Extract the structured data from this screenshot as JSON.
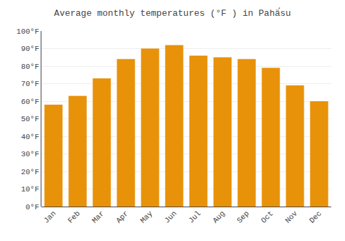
{
  "chart_data": {
    "type": "bar",
    "title": "Average monthly temperatures (°F ) in Pahä́su",
    "categories": [
      "Jan",
      "Feb",
      "Mar",
      "Apr",
      "May",
      "Jun",
      "Jul",
      "Aug",
      "Sep",
      "Oct",
      "Nov",
      "Dec"
    ],
    "values": [
      58,
      63,
      73,
      84,
      90,
      92,
      86,
      85,
      84,
      79,
      69,
      60
    ],
    "color": "#E8920A",
    "ylim": [
      0,
      100
    ],
    "yticks": [
      {
        "value": 0,
        "label": "0°F"
      },
      {
        "value": 10,
        "label": "10°F"
      },
      {
        "value": 20,
        "label": "20°F"
      },
      {
        "value": 30,
        "label": "30°F"
      },
      {
        "value": 40,
        "label": "40°F"
      },
      {
        "value": 50,
        "label": "50°F"
      },
      {
        "value": 60,
        "label": "60°F"
      },
      {
        "value": 70,
        "label": "70°F"
      },
      {
        "value": 80,
        "label": "80°F"
      },
      {
        "value": 90,
        "label": "90°F"
      },
      {
        "value": 100,
        "label": "100°F"
      }
    ],
    "grid": true
  }
}
